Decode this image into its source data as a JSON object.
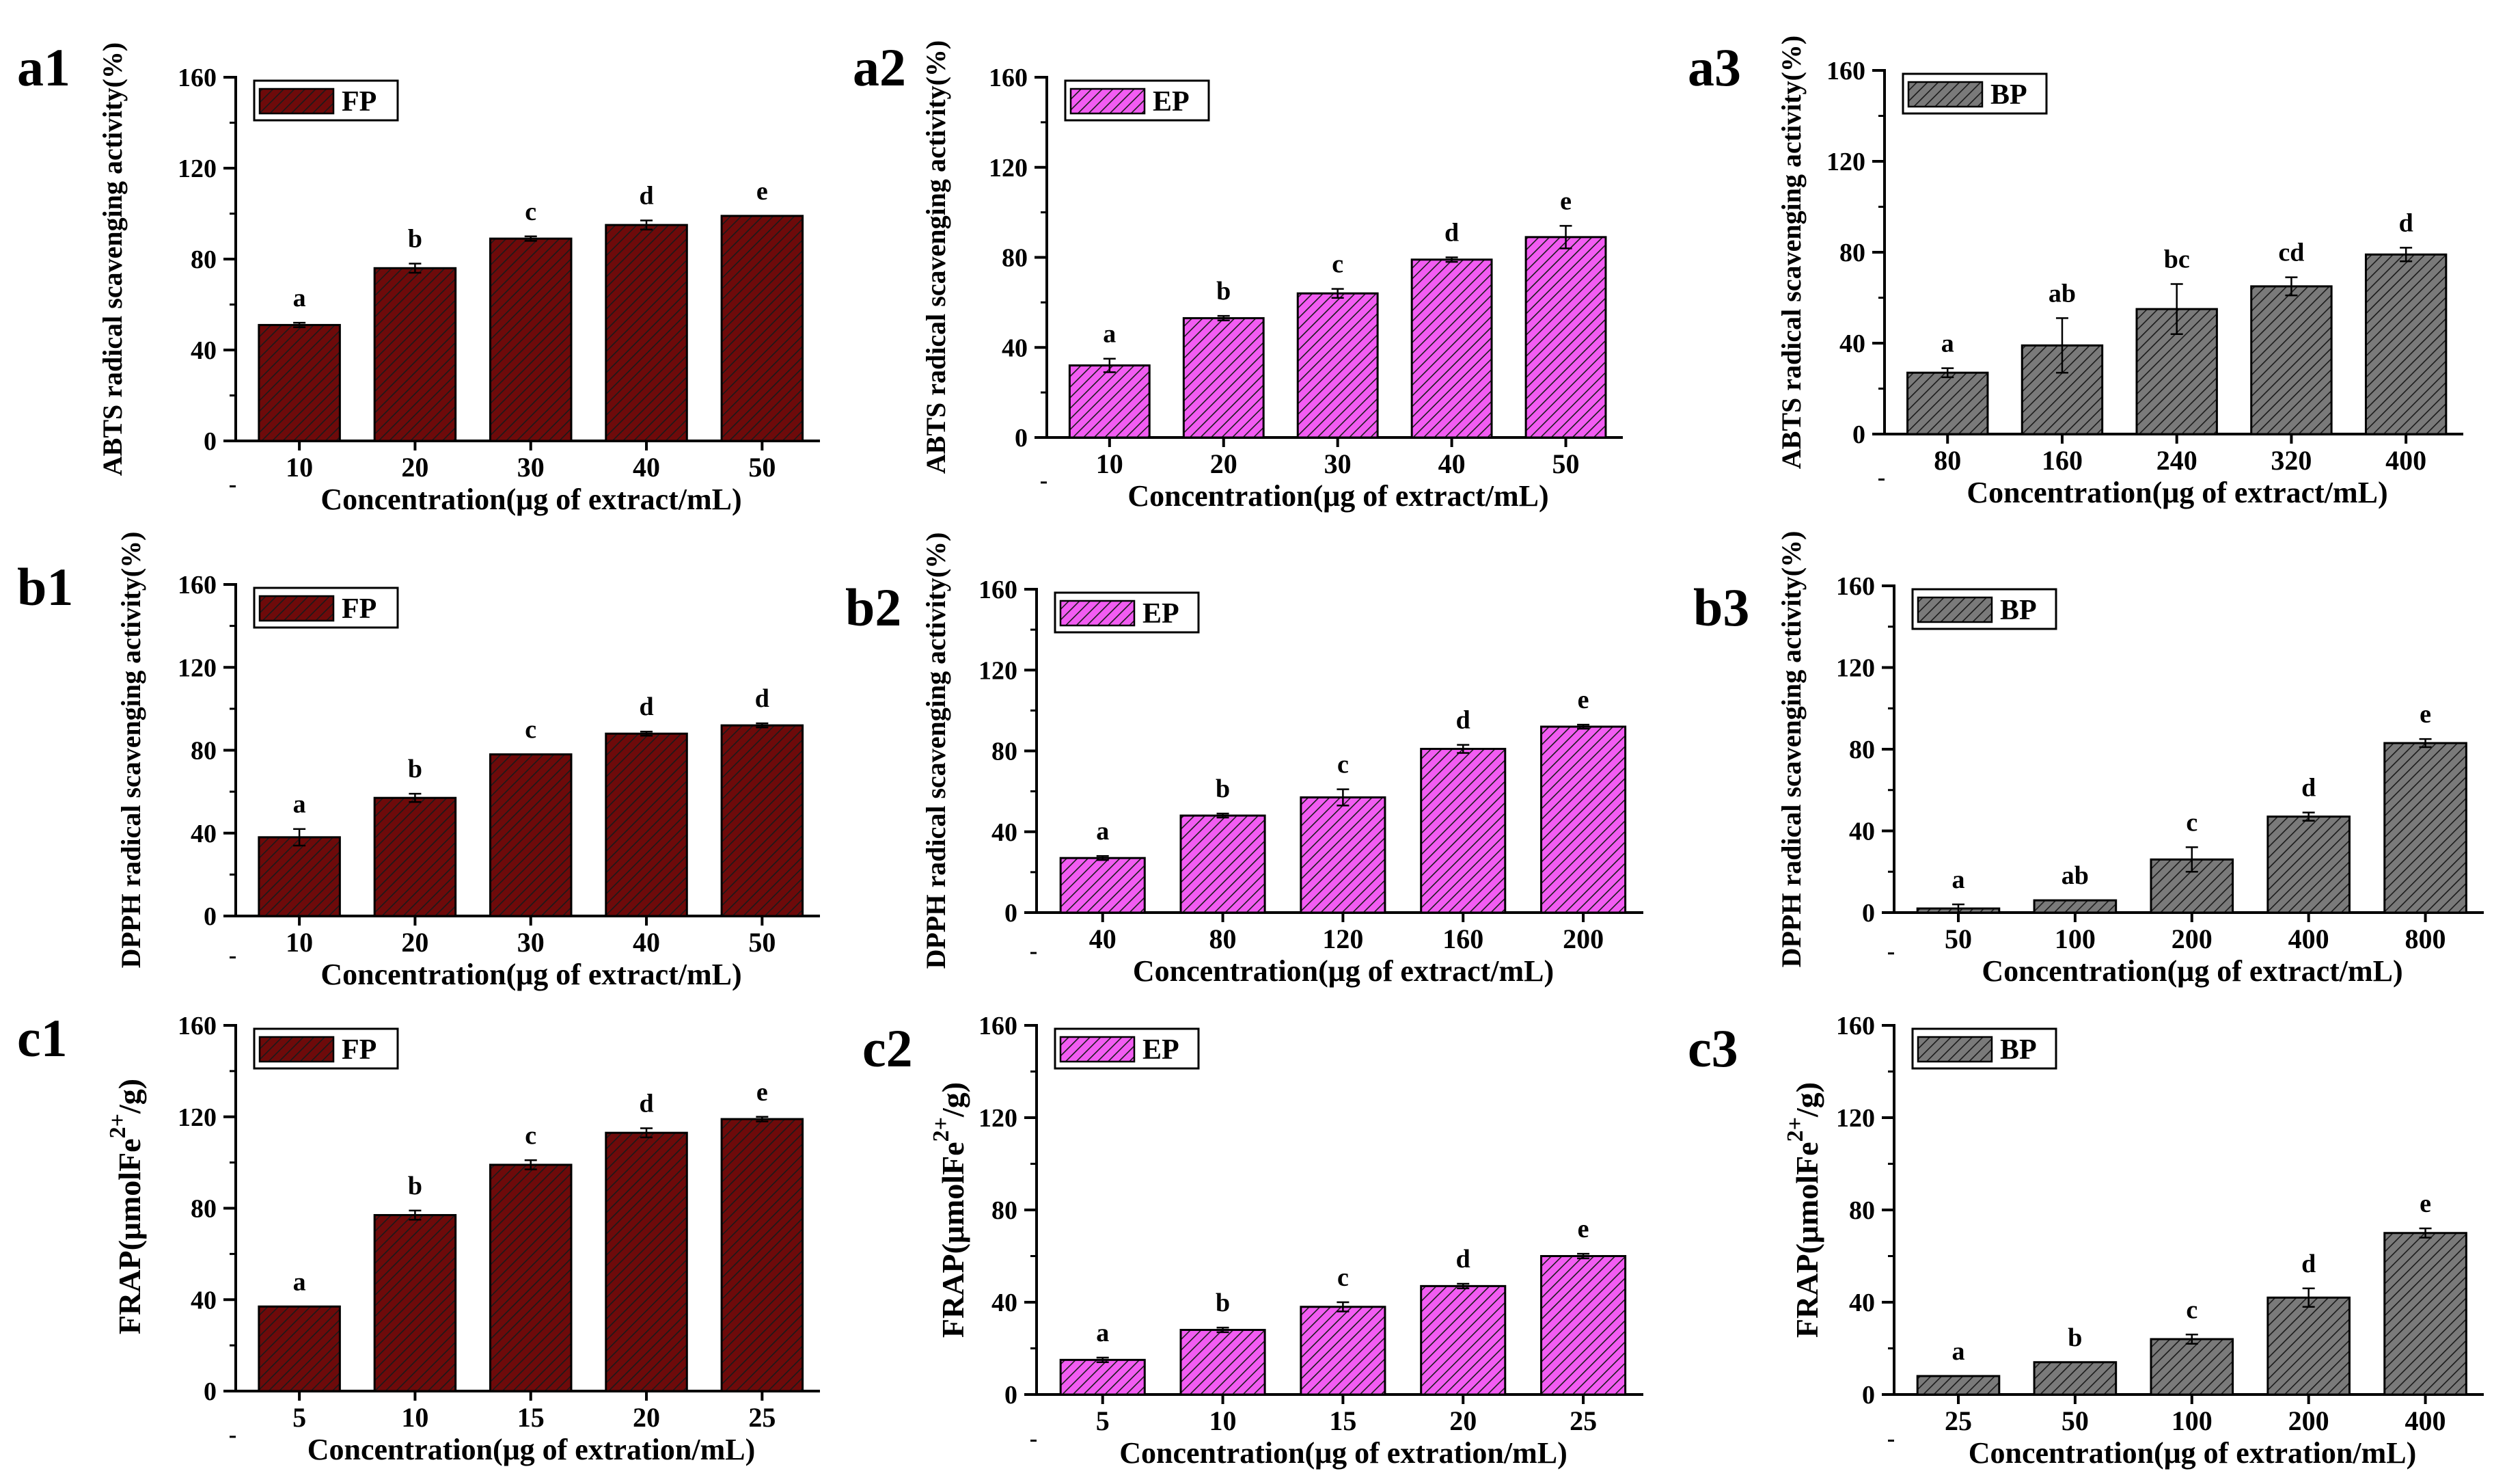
{
  "colors": {
    "FP": "#6e0a0a",
    "EP": "#f25cf2",
    "BP": "#7a7a7a",
    "hatch": "#1a1a1a",
    "axis": "#000000"
  },
  "chart_data": [
    {
      "id": "a1",
      "type": "bar",
      "legend": "FP",
      "ylabel": "ABTS radical scavenging activity(%)",
      "xlabel": "Concentration(μg of extract/mL)",
      "categories": [
        "10",
        "20",
        "30",
        "40",
        "50"
      ],
      "values": [
        51,
        76,
        89,
        95,
        99
      ],
      "errors": [
        1,
        2,
        1,
        2,
        0
      ],
      "letters": [
        "a",
        "b",
        "c",
        "d",
        "e"
      ],
      "ylim": [
        0,
        160
      ],
      "yticks": [
        "0",
        "40",
        "80",
        "120",
        "160"
      ]
    },
    {
      "id": "a2",
      "type": "bar",
      "legend": "EP",
      "ylabel": "ABTS radical scavenging activity(%)",
      "xlabel": "Concentration(μg of extract/mL)",
      "categories": [
        "10",
        "20",
        "30",
        "40",
        "50"
      ],
      "values": [
        32,
        53,
        64,
        79,
        89
      ],
      "errors": [
        3,
        1,
        2,
        1,
        5
      ],
      "letters": [
        "a",
        "b",
        "c",
        "d",
        "e"
      ],
      "ylim": [
        0,
        160
      ],
      "yticks": [
        "0",
        "40",
        "80",
        "120",
        "160"
      ]
    },
    {
      "id": "a3",
      "type": "bar",
      "legend": "BP",
      "ylabel": "ABTS radical scavenging activity(%)",
      "xlabel": "Concentration(μg of extract/mL)",
      "categories": [
        "80",
        "160",
        "240",
        "320",
        "400"
      ],
      "values": [
        27,
        39,
        55,
        65,
        79
      ],
      "errors": [
        2,
        12,
        11,
        4,
        3
      ],
      "letters": [
        "a",
        "ab",
        "bc",
        "cd",
        "d"
      ],
      "ylim": [
        0,
        160
      ],
      "yticks": [
        "0",
        "40",
        "80",
        "120",
        "160"
      ]
    },
    {
      "id": "b1",
      "type": "bar",
      "legend": "FP",
      "ylabel": "DPPH radical scavenging activity(%)",
      "xlabel": "Concentration(μg of extract/mL)",
      "categories": [
        "10",
        "20",
        "30",
        "40",
        "50"
      ],
      "values": [
        38,
        57,
        78,
        88,
        92
      ],
      "errors": [
        4,
        2,
        0,
        1,
        1
      ],
      "letters": [
        "a",
        "b",
        "c",
        "d",
        "d"
      ],
      "ylim": [
        0,
        160
      ],
      "yticks": [
        "0",
        "40",
        "80",
        "120",
        "160"
      ]
    },
    {
      "id": "b2",
      "type": "bar",
      "legend": "EP",
      "ylabel": "DPPH radical scavenging activity(%)",
      "xlabel": "Concentration(μg of extract/mL)",
      "categories": [
        "40",
        "80",
        "120",
        "160",
        "200"
      ],
      "values": [
        27,
        48,
        57,
        81,
        92
      ],
      "errors": [
        1,
        1,
        4,
        2,
        1
      ],
      "letters": [
        "a",
        "b",
        "c",
        "d",
        "e"
      ],
      "ylim": [
        0,
        160
      ],
      "yticks": [
        "0",
        "40",
        "80",
        "120",
        "160"
      ]
    },
    {
      "id": "b3",
      "type": "bar",
      "legend": "BP",
      "ylabel": "DPPH radical scavenging activity(%)",
      "xlabel": "Concentration(μg of extract/mL)",
      "categories": [
        "50",
        "100",
        "200",
        "400",
        "800"
      ],
      "values": [
        2,
        6,
        26,
        47,
        83
      ],
      "errors": [
        2,
        0,
        6,
        2,
        2
      ],
      "letters": [
        "a",
        "ab",
        "c",
        "d",
        "e"
      ],
      "ylim": [
        0,
        160
      ],
      "yticks": [
        "0",
        "40",
        "80",
        "120",
        "160"
      ]
    },
    {
      "id": "c1",
      "type": "bar",
      "legend": "FP",
      "ylabel_main": "FRAP(μmolFe",
      "ylabel_sup": "2+",
      "ylabel_end": "/g)",
      "xlabel": "Concentration(μg of extration/mL)",
      "categories": [
        "5",
        "10",
        "15",
        "20",
        "25"
      ],
      "values": [
        37,
        77,
        99,
        113,
        119
      ],
      "errors": [
        0,
        2,
        2,
        2,
        1
      ],
      "letters": [
        "a",
        "b",
        "c",
        "d",
        "e"
      ],
      "ylim": [
        0,
        160
      ],
      "yticks": [
        "0",
        "40",
        "80",
        "120",
        "160"
      ]
    },
    {
      "id": "c2",
      "type": "bar",
      "legend": "EP",
      "ylabel_main": "FRAP(μmolFe",
      "ylabel_sup": "2+",
      "ylabel_end": "/g)",
      "xlabel": "Concentration(μg of extration/mL)",
      "categories": [
        "5",
        "10",
        "15",
        "20",
        "25"
      ],
      "values": [
        15,
        28,
        38,
        47,
        60
      ],
      "errors": [
        1,
        1,
        2,
        1,
        1
      ],
      "letters": [
        "a",
        "b",
        "c",
        "d",
        "e"
      ],
      "ylim": [
        0,
        160
      ],
      "yticks": [
        "0",
        "40",
        "80",
        "120",
        "160"
      ]
    },
    {
      "id": "c3",
      "type": "bar",
      "legend": "BP",
      "ylabel_main": "FRAP(μmolFe",
      "ylabel_sup": "2+",
      "ylabel_end": "/g)",
      "xlabel": "Concentration(μg of extration/mL)",
      "categories": [
        "25",
        "50",
        "100",
        "200",
        "400"
      ],
      "values": [
        8,
        14,
        24,
        42,
        70
      ],
      "errors": [
        0,
        0,
        2,
        4,
        2
      ],
      "letters": [
        "a",
        "b",
        "c",
        "d",
        "e"
      ],
      "ylim": [
        0,
        160
      ],
      "yticks": [
        "0",
        "40",
        "80",
        "120",
        "160"
      ]
    }
  ]
}
